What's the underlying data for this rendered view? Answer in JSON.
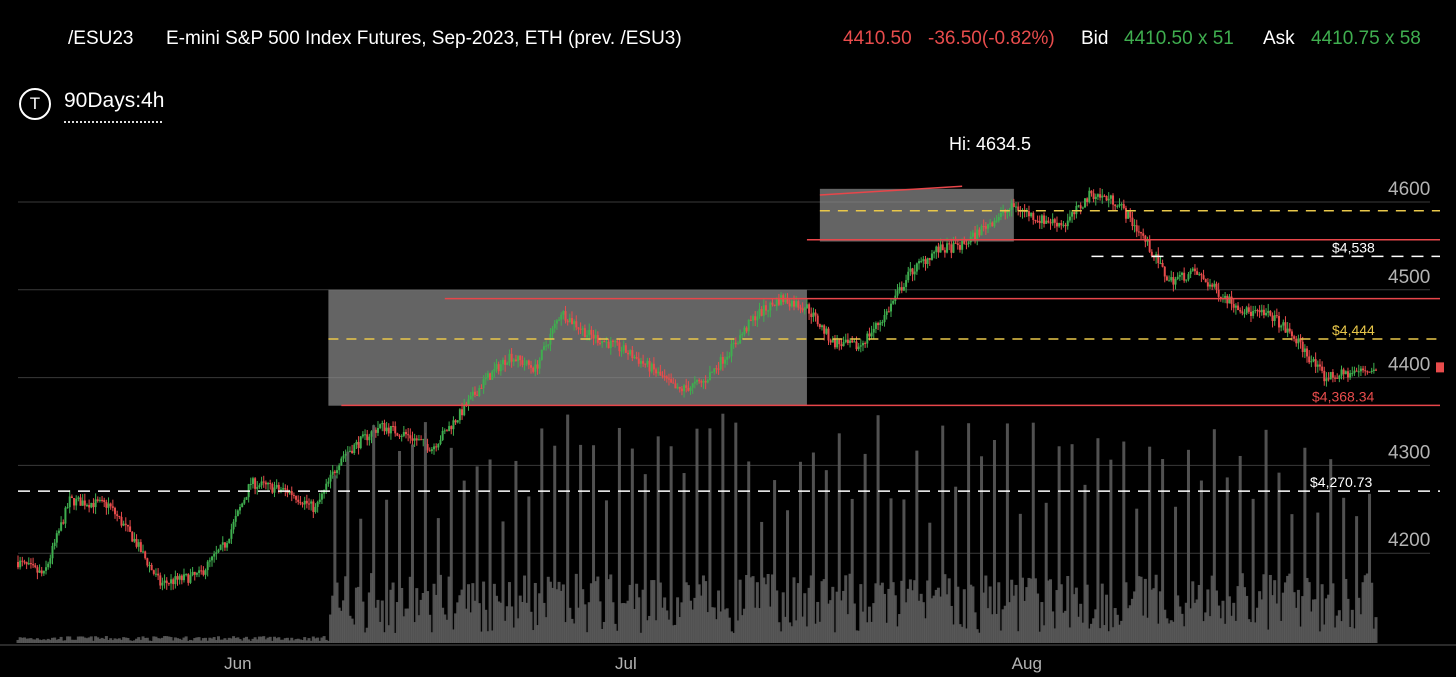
{
  "header": {
    "symbol": "/ESU23",
    "description": "E-mini S&P 500 Index Futures, Sep-2023, ETH (prev. /ESU3)",
    "last_price": "4410.50",
    "change": "-36.50(-0.82%)",
    "bid_label": "Bid",
    "bid_value": "4410.50 x 51",
    "ask_label": "Ask",
    "ask_value": "4410.75 x 58"
  },
  "toolbar": {
    "timeframe_icon": "T",
    "timeframe_label": "90Days:4h"
  },
  "colors": {
    "up": "#3fae4f",
    "down": "#e84c4c",
    "level_line": "#e8464a",
    "yellow_dash": "#e9c74a",
    "white_dash": "#ffffff",
    "box": "#8a8a8a",
    "volume": "#5a5a5a",
    "grid": "#3a3a3a",
    "axis_text": "#b3b3b3"
  },
  "chart_data": {
    "type": "candlestick",
    "instrument": "/ESU23",
    "timeframe": "4h",
    "high_annotation": "Hi: 4634.5",
    "high_value": 4634.5,
    "x_tick_labels": [
      "Jun",
      "Jul",
      "Aug"
    ],
    "y_tick_labels": [
      "4600",
      "4500",
      "4400",
      "4300",
      "4200"
    ],
    "y_ticks": [
      4600,
      4500,
      4400,
      4300,
      4200
    ],
    "ylim": [
      4082,
      4632
    ],
    "x_range": [
      "2023-05-15",
      "2023-08-28"
    ],
    "x_ticks": [
      "2023-06-01",
      "2023-07-01",
      "2023-08-01"
    ],
    "grid": true,
    "price_labels": [
      {
        "text": "$4,538",
        "value": 4538,
        "style": "white-dash"
      },
      {
        "text": "$4,444",
        "value": 4444,
        "style": "yellow-dash"
      },
      {
        "text": "$4,368.34",
        "value": 4368.34,
        "style": "red-line"
      },
      {
        "text": "$4,270.73",
        "value": 4270.73,
        "style": "white-dash"
      }
    ],
    "horizontal_lines": [
      {
        "value": 4590,
        "style": "yellow-dash",
        "from": "2023-07-16",
        "to": "2023-08-28"
      },
      {
        "value": 4557,
        "style": "red-line",
        "from": "2023-07-15",
        "to": "2023-08-28"
      },
      {
        "value": 4538,
        "style": "white-dash",
        "from": "2023-08-06",
        "to": "2023-08-28"
      },
      {
        "value": 4490,
        "style": "red-line",
        "from": "2023-06-17",
        "to": "2023-08-28"
      },
      {
        "value": 4444,
        "style": "yellow-dash",
        "from": "2023-06-08",
        "to": "2023-08-28"
      },
      {
        "value": 4368.34,
        "style": "red-line",
        "from": "2023-06-09",
        "to": "2023-08-28"
      },
      {
        "value": 4270.73,
        "style": "white-dash",
        "from": "2023-05-15",
        "to": "2023-08-28"
      }
    ],
    "consolidation_boxes": [
      {
        "from": "2023-06-08",
        "to": "2023-07-15",
        "top": 4500,
        "bottom": 4368
      },
      {
        "from": "2023-07-16",
        "to": "2023-07-31",
        "top": 4615,
        "bottom": 4555
      }
    ],
    "trendline": {
      "from": "2023-07-16",
      "to": "2023-07-27",
      "start": 4608,
      "end": 4618
    },
    "path_keypoints": [
      [
        "2023-05-15",
        4190
      ],
      [
        "2023-05-17",
        4175
      ],
      [
        "2023-05-19",
        4260
      ],
      [
        "2023-05-22",
        4255
      ],
      [
        "2023-05-24",
        4215
      ],
      [
        "2023-05-26",
        4165
      ],
      [
        "2023-05-29",
        4175
      ],
      [
        "2023-05-31",
        4210
      ],
      [
        "2023-06-02",
        4280
      ],
      [
        "2023-06-05",
        4270
      ],
      [
        "2023-06-07",
        4250
      ],
      [
        "2023-06-09",
        4310
      ],
      [
        "2023-06-12",
        4345
      ],
      [
        "2023-06-14",
        4335
      ],
      [
        "2023-06-16",
        4320
      ],
      [
        "2023-06-18",
        4355
      ],
      [
        "2023-06-20",
        4395
      ],
      [
        "2023-06-22",
        4425
      ],
      [
        "2023-06-24",
        4410
      ],
      [
        "2023-06-26",
        4475
      ],
      [
        "2023-06-28",
        4450
      ],
      [
        "2023-07-01",
        4430
      ],
      [
        "2023-07-03",
        4410
      ],
      [
        "2023-07-05",
        4385
      ],
      [
        "2023-07-07",
        4395
      ],
      [
        "2023-07-09",
        4430
      ],
      [
        "2023-07-11",
        4470
      ],
      [
        "2023-07-13",
        4490
      ],
      [
        "2023-07-15",
        4480
      ],
      [
        "2023-07-17",
        4440
      ],
      [
        "2023-07-19",
        4435
      ],
      [
        "2023-07-21",
        4470
      ],
      [
        "2023-07-23",
        4520
      ],
      [
        "2023-07-25",
        4545
      ],
      [
        "2023-07-27",
        4550
      ],
      [
        "2023-07-29",
        4575
      ],
      [
        "2023-07-31",
        4595
      ],
      [
        "2023-08-02",
        4580
      ],
      [
        "2023-08-04",
        4575
      ],
      [
        "2023-08-06",
        4610
      ],
      [
        "2023-08-08",
        4600
      ],
      [
        "2023-08-10",
        4560
      ],
      [
        "2023-08-12",
        4510
      ],
      [
        "2023-08-14",
        4520
      ],
      [
        "2023-08-16",
        4495
      ],
      [
        "2023-08-18",
        4475
      ],
      [
        "2023-08-20",
        4470
      ],
      [
        "2023-08-22",
        4440
      ],
      [
        "2023-08-24",
        4400
      ],
      [
        "2023-08-26",
        4405
      ],
      [
        "2023-08-28",
        4410
      ]
    ]
  }
}
